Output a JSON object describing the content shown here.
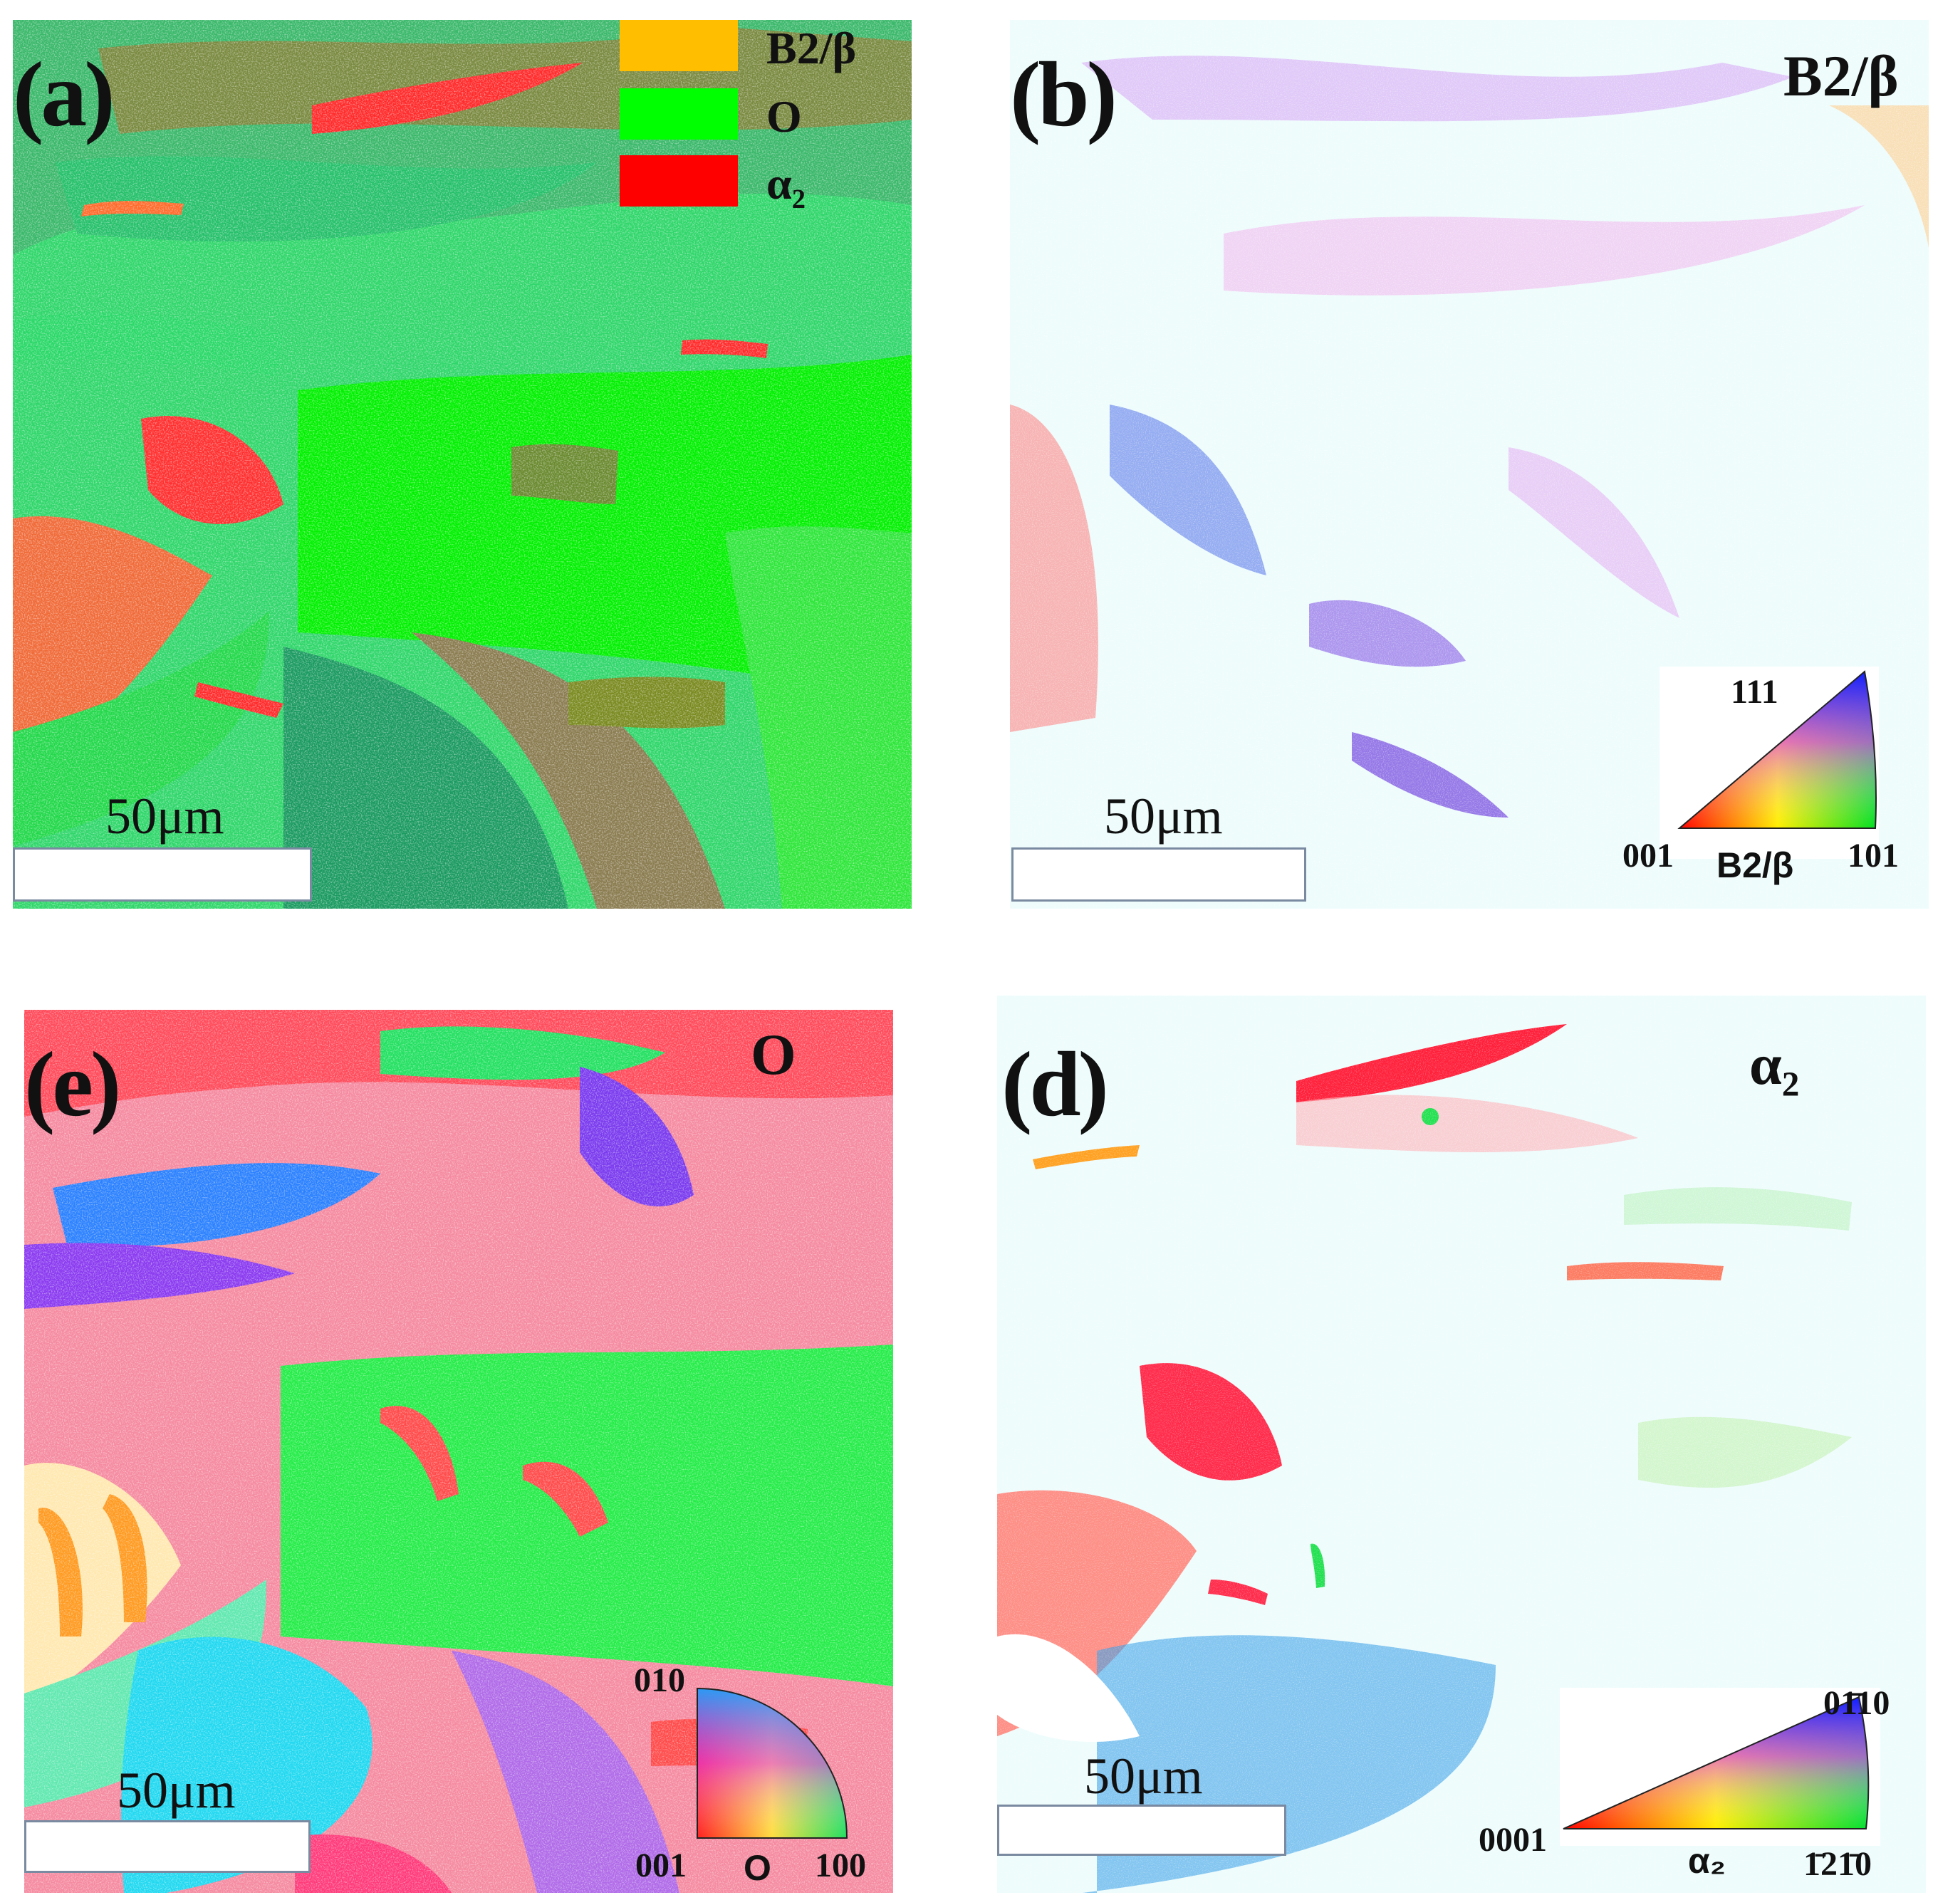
{
  "panels": {
    "a": {
      "label": "(a)",
      "scale_text": "50μm",
      "legend": [
        {
          "label": "B2/β",
          "color": "#ffbf00"
        },
        {
          "label": "O",
          "color": "#00ff00"
        },
        {
          "label": "α₂",
          "color": "#ff0000"
        }
      ]
    },
    "b": {
      "label": "(b)",
      "phase_title": "B2/β",
      "scale_text": "50μm",
      "key": {
        "top": "111",
        "left": "001",
        "right": "101",
        "phase": "B2/β"
      }
    },
    "c": {
      "label": "(e)",
      "phase_title": "O",
      "scale_text": "50μm",
      "key": {
        "top": "010",
        "left": "001",
        "right": "100",
        "phase": "O"
      }
    },
    "d": {
      "label": "(d)",
      "phase_title": "α₂",
      "scale_text": "50μm",
      "key": {
        "top": "01̄10",
        "left": "0001",
        "right": "1̄21̄0",
        "phase": "α₂"
      }
    }
  },
  "colors": {
    "o_phase": "#00ff00",
    "alpha2": "#ff0000",
    "b2_beta": "#ffbf00",
    "background_sparse": "#eefcfc"
  }
}
